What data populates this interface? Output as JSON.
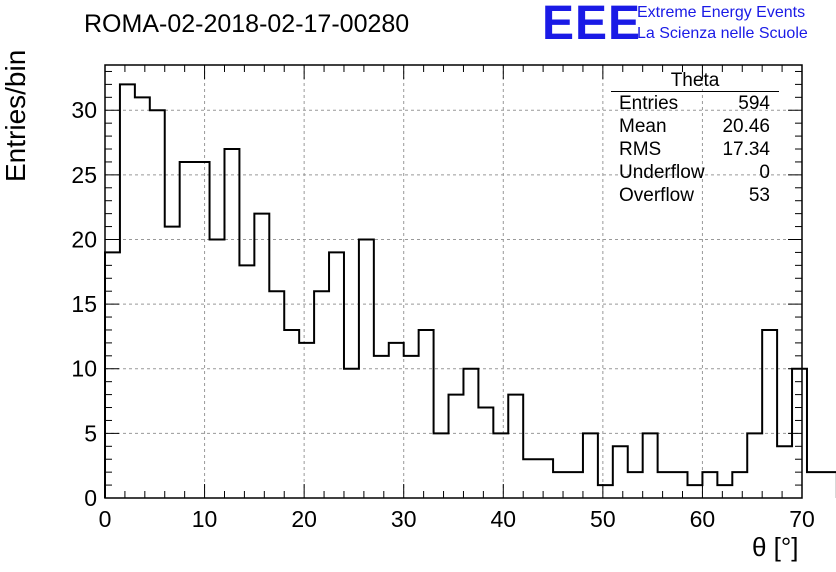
{
  "header": {
    "run_title": "ROMA-02-2018-02-17-00280",
    "logo_text": "EEE",
    "logo_line1": "Extreme Energy Events",
    "logo_line2": "La Scienza nelle Scuole",
    "logo_color": "#1a1ae6"
  },
  "stats_box": {
    "name": "Theta",
    "rows": [
      {
        "label": "Entries",
        "value": "594"
      },
      {
        "label": "Mean",
        "value": "20.46"
      },
      {
        "label": "RMS",
        "value": "17.34"
      },
      {
        "label": "Underflow",
        "value": "0"
      },
      {
        "label": "Overflow",
        "value": "53"
      }
    ]
  },
  "chart_data": {
    "type": "bar",
    "histogram": true,
    "xlabel": "θ [°]",
    "ylabel": "Entries/bin",
    "xlim": [
      0,
      70
    ],
    "ylim": [
      0,
      33.5
    ],
    "grid": true,
    "x_ticks": [
      0,
      10,
      20,
      30,
      40,
      50,
      60,
      70
    ],
    "y_ticks": [
      0,
      5,
      10,
      15,
      20,
      25,
      30
    ],
    "bin_width": 1.5,
    "bin_edges_start": 0,
    "values": [
      19,
      32,
      31,
      30,
      21,
      26,
      26,
      20,
      27,
      18,
      22,
      16,
      13,
      12,
      16,
      19,
      10,
      20,
      11,
      12,
      11,
      13,
      5,
      8,
      10,
      7,
      5,
      8,
      3,
      3,
      2,
      2,
      5,
      1,
      4,
      2,
      5,
      2,
      2,
      1,
      2,
      1,
      2,
      5,
      13,
      4,
      10,
      2,
      2
    ],
    "line_color": "#000000"
  }
}
